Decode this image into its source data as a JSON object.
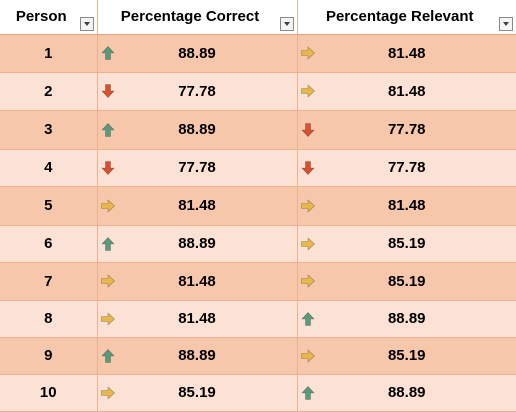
{
  "headers": {
    "person": "Person",
    "percentage_correct": "Percentage Correct",
    "percentage_relevant": "Percentage Relevant"
  },
  "rows": [
    {
      "person": "1",
      "correct": {
        "value": "88.89",
        "icon": "up-arrow-icon"
      },
      "relevant": {
        "value": "81.48",
        "icon": "right-arrow-icon"
      }
    },
    {
      "person": "2",
      "correct": {
        "value": "77.78",
        "icon": "down-arrow-icon"
      },
      "relevant": {
        "value": "81.48",
        "icon": "right-arrow-icon"
      }
    },
    {
      "person": "3",
      "correct": {
        "value": "88.89",
        "icon": "up-arrow-icon"
      },
      "relevant": {
        "value": "77.78",
        "icon": "down-arrow-icon"
      }
    },
    {
      "person": "4",
      "correct": {
        "value": "77.78",
        "icon": "down-arrow-icon"
      },
      "relevant": {
        "value": "77.78",
        "icon": "down-arrow-icon"
      }
    },
    {
      "person": "5",
      "correct": {
        "value": "81.48",
        "icon": "right-arrow-icon"
      },
      "relevant": {
        "value": "81.48",
        "icon": "right-arrow-icon"
      }
    },
    {
      "person": "6",
      "correct": {
        "value": "88.89",
        "icon": "up-arrow-icon"
      },
      "relevant": {
        "value": "85.19",
        "icon": "right-arrow-icon"
      }
    },
    {
      "person": "7",
      "correct": {
        "value": "81.48",
        "icon": "right-arrow-icon"
      },
      "relevant": {
        "value": "85.19",
        "icon": "right-arrow-icon"
      }
    },
    {
      "person": "8",
      "correct": {
        "value": "81.48",
        "icon": "right-arrow-icon"
      },
      "relevant": {
        "value": "88.89",
        "icon": "up-arrow-icon"
      }
    },
    {
      "person": "9",
      "correct": {
        "value": "88.89",
        "icon": "up-arrow-icon"
      },
      "relevant": {
        "value": "85.19",
        "icon": "right-arrow-icon"
      }
    },
    {
      "person": "10",
      "correct": {
        "value": "85.19",
        "icon": "right-arrow-icon"
      },
      "relevant": {
        "value": "88.89",
        "icon": "up-arrow-icon"
      }
    }
  ],
  "colors": {
    "row_dark": "#f7c7ac",
    "row_light": "#fbe2d5",
    "grid_line": "#f0b090",
    "up_arrow": "#5a9a7c",
    "down_arrow": "#d9502e",
    "right_arrow": "#e8b84a"
  }
}
